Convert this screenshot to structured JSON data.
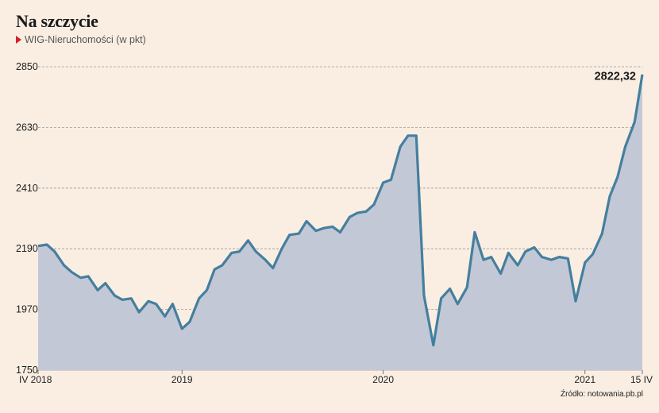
{
  "title": "Na szczycie",
  "subtitle": "WIG-Nieruchomości (w pkt)",
  "source": "Źródło: notowania.pb.pl",
  "colors": {
    "line": "#457f9e",
    "area": "#c3c8d6",
    "grid": "#9a9a9a",
    "background": "#faeee2",
    "marker": "#d4202c"
  },
  "chart_data": {
    "type": "area",
    "title": "Na szczycie",
    "ylim": [
      1750,
      2850
    ],
    "yticks": [
      "2850",
      "2630",
      "2410",
      "2190",
      "1970",
      "1750"
    ],
    "xtick_labels": [
      {
        "label": "IV 2018",
        "date": "2018-04-15"
      },
      {
        "label": "2019",
        "date": "2019-01-01"
      },
      {
        "label": "2020",
        "date": "2020-01-01"
      },
      {
        "label": "2021",
        "date": "2021-01-01"
      },
      {
        "label": "15 IV",
        "date": "2021-04-15"
      }
    ],
    "last_value_label": "2822,32",
    "x": [
      "2018-04-15",
      "2018-05-01",
      "2018-05-15",
      "2018-06-01",
      "2018-06-15",
      "2018-07-01",
      "2018-07-15",
      "2018-08-01",
      "2018-08-15",
      "2018-09-01",
      "2018-09-15",
      "2018-10-01",
      "2018-10-15",
      "2018-11-01",
      "2018-11-15",
      "2018-12-01",
      "2018-12-15",
      "2019-01-01",
      "2019-01-15",
      "2019-02-01",
      "2019-02-15",
      "2019-03-01",
      "2019-03-15",
      "2019-04-01",
      "2019-04-15",
      "2019-05-01",
      "2019-05-15",
      "2019-06-01",
      "2019-06-15",
      "2019-07-01",
      "2019-07-15",
      "2019-08-01",
      "2019-08-15",
      "2019-09-01",
      "2019-09-15",
      "2019-10-01",
      "2019-10-15",
      "2019-11-01",
      "2019-11-15",
      "2019-12-01",
      "2019-12-15",
      "2020-01-01",
      "2020-01-15",
      "2020-02-01",
      "2020-02-15",
      "2020-03-01",
      "2020-03-15",
      "2020-04-01",
      "2020-04-15",
      "2020-05-01",
      "2020-05-15",
      "2020-06-01",
      "2020-06-15",
      "2020-07-01",
      "2020-07-15",
      "2020-08-01",
      "2020-08-15",
      "2020-09-01",
      "2020-09-15",
      "2020-10-01",
      "2020-10-15",
      "2020-11-01",
      "2020-11-15",
      "2020-12-01",
      "2020-12-15",
      "2021-01-01",
      "2021-01-15",
      "2021-02-01",
      "2021-02-15",
      "2021-03-01",
      "2021-03-15",
      "2021-04-01",
      "2021-04-15"
    ],
    "values": [
      2200,
      2205,
      2180,
      2130,
      2105,
      2085,
      2090,
      2040,
      2065,
      2020,
      2005,
      2010,
      1960,
      2000,
      1990,
      1945,
      1990,
      1900,
      1925,
      2010,
      2040,
      2115,
      2130,
      2175,
      2180,
      2220,
      2180,
      2150,
      2120,
      2190,
      2240,
      2245,
      2290,
      2255,
      2265,
      2270,
      2250,
      2305,
      2320,
      2325,
      2350,
      2430,
      2440,
      2560,
      2600,
      2600,
      2020,
      1840,
      2010,
      2045,
      1990,
      2050,
      2250,
      2150,
      2160,
      2100,
      2175,
      2130,
      2180,
      2195,
      2160,
      2150,
      2160,
      2155,
      2000,
      2140,
      2170,
      2245,
      2380,
      2450,
      2560,
      2650,
      2822
    ]
  }
}
